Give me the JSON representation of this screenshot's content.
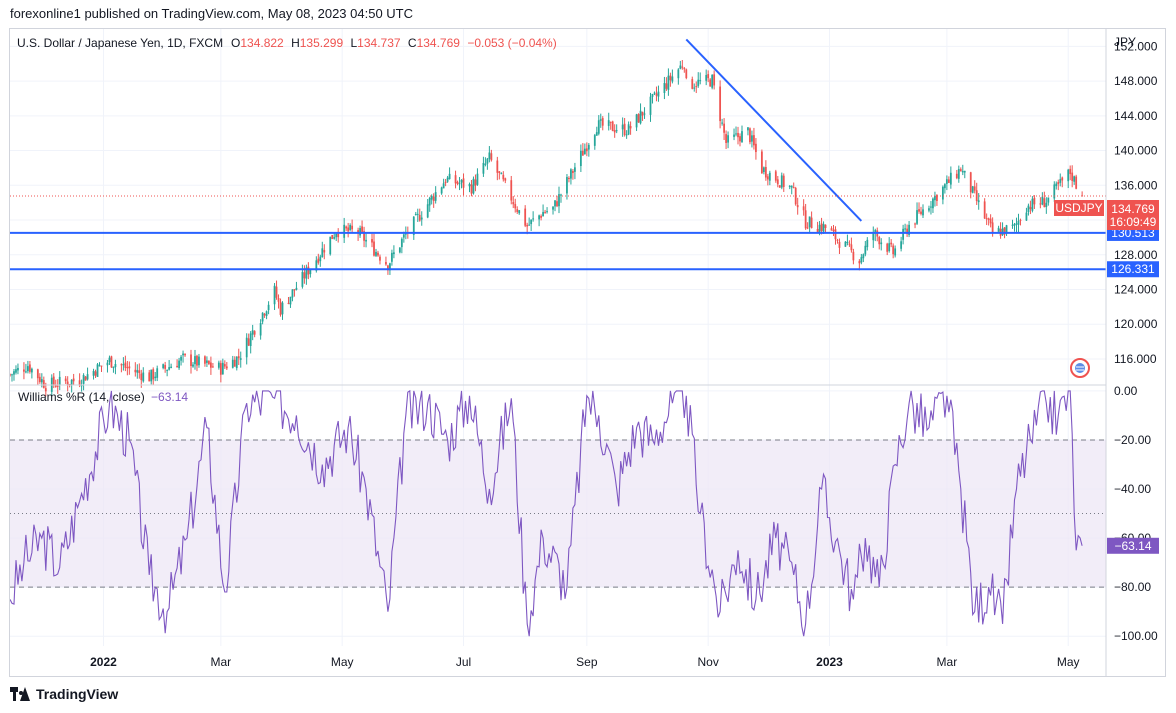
{
  "header": {
    "published": "forexonline1 published on TradingView.com, May 08, 2023 04:50 UTC"
  },
  "legend": {
    "symbol": "U.S. Dollar / Japanese Yen, 1D, FXCM",
    "o_label": "O",
    "o": "134.822",
    "h_label": "H",
    "h": "135.299",
    "l_label": "L",
    "l": "134.737",
    "c_label": "C",
    "c": "134.769",
    "change": "−0.053 (−0.04%)"
  },
  "currency": "JPY",
  "price_label": {
    "ticker": "USDJPY",
    "value": "134.769",
    "countdown": "16:09:49"
  },
  "levels": [
    {
      "label": "130.513",
      "value": 130.513
    },
    {
      "label": "126.331",
      "value": 126.331
    }
  ],
  "indicator": {
    "name": "Williams %R (14, close)",
    "value": "−63.14",
    "last_label": "−63.14"
  },
  "footer": {
    "brand": "TradingView"
  },
  "colors": {
    "up": "#26a69a",
    "down": "#ef5350",
    "level": "#2962ff",
    "wr": "#7e57c2",
    "wr_band": "#ede7f6",
    "grid": "#f0f3fa"
  },
  "chart_data": [
    {
      "type": "candlestick",
      "title": "U.S. Dollar / Japanese Yen, 1D, FXCM",
      "ylabel": "JPY",
      "ylim": [
        113,
        154
      ],
      "y_ticks": [
        116,
        120,
        124,
        128,
        132,
        136,
        140,
        144,
        148,
        152
      ],
      "y_tick_labels": [
        "116.000",
        "120.000",
        "124.000",
        "128.000",
        "132.000",
        "136.000",
        "140.000",
        "144.000",
        "148.000",
        "152.000"
      ],
      "x_tick_labels": [
        "2022",
        "Mar",
        "May",
        "Jul",
        "Sep",
        "Nov",
        "2023",
        "Mar",
        "May"
      ],
      "x_ticks": [
        "2022-01-01",
        "2022-03-01",
        "2022-05-01",
        "2022-07-01",
        "2022-09-01",
        "2022-11-01",
        "2023-01-01",
        "2023-03-01",
        "2023-05-01"
      ],
      "x_range": [
        "2021-11-15",
        "2023-05-20"
      ],
      "anchors": [
        [
          "2021-11-15",
          114.2
        ],
        [
          "2021-11-24",
          115.3
        ],
        [
          "2021-12-03",
          113.0
        ],
        [
          "2021-12-20",
          113.6
        ],
        [
          "2022-01-04",
          115.8
        ],
        [
          "2022-01-24",
          113.9
        ],
        [
          "2022-02-10",
          116.0
        ],
        [
          "2022-03-01",
          114.9
        ],
        [
          "2022-03-10",
          116.2
        ],
        [
          "2022-03-28",
          123.8
        ],
        [
          "2022-03-31",
          121.7
        ],
        [
          "2022-04-28",
          130.8
        ],
        [
          "2022-05-09",
          130.6
        ],
        [
          "2022-05-24",
          126.9
        ],
        [
          "2022-06-01",
          130.0
        ],
        [
          "2022-06-15",
          134.5
        ],
        [
          "2022-06-22",
          136.7
        ],
        [
          "2022-07-05",
          135.8
        ],
        [
          "2022-07-14",
          139.1
        ],
        [
          "2022-08-02",
          131.3
        ],
        [
          "2022-08-10",
          132.9
        ],
        [
          "2022-08-15",
          133.3
        ],
        [
          "2022-09-06",
          142.9
        ],
        [
          "2022-09-22",
          142.4
        ],
        [
          "2022-10-20",
          150.2
        ],
        [
          "2022-10-21",
          147.6
        ],
        [
          "2022-11-03",
          148.1
        ],
        [
          "2022-11-10",
          140.9
        ],
        [
          "2022-11-21",
          142.2
        ],
        [
          "2022-11-28",
          137.9
        ],
        [
          "2022-12-13",
          135.6
        ],
        [
          "2022-12-20",
          131.8
        ],
        [
          "2022-12-30",
          131.1
        ],
        [
          "2023-01-16",
          127.4
        ],
        [
          "2023-01-23",
          130.6
        ],
        [
          "2023-02-02",
          128.2
        ],
        [
          "2023-02-10",
          131.4
        ],
        [
          "2023-03-08",
          137.9
        ],
        [
          "2023-03-24",
          130.5
        ],
        [
          "2023-04-04",
          131.1
        ],
        [
          "2023-04-10",
          133.6
        ],
        [
          "2023-04-20",
          134.2
        ],
        [
          "2023-05-02",
          137.5
        ],
        [
          "2023-05-08",
          134.769
        ]
      ],
      "annotations": [
        {
          "type": "trendline",
          "from": [
            "2022-10-21",
            152.8
          ],
          "to": [
            "2023-01-17",
            131.9
          ]
        },
        {
          "type": "horizontal_line",
          "value": 130.513,
          "label": "130.513"
        },
        {
          "type": "horizontal_line",
          "value": 126.331,
          "label": "126.331"
        }
      ],
      "last_price": 134.769
    },
    {
      "type": "line",
      "title": "Williams %R (14, close)",
      "ylim": [
        -104,
        2
      ],
      "y_ticks": [
        0,
        -20,
        -40,
        -60,
        -80,
        -100
      ],
      "y_tick_labels": [
        "0.00",
        "−20.00",
        "−40.00",
        "−60.00",
        "−80.00",
        "−100.00"
      ],
      "band": [
        -20,
        -80
      ],
      "midline": -50,
      "x": [
        "2021-11-15",
        "2021-11-22",
        "2021-12-01",
        "2021-12-10",
        "2021-12-20",
        "2022-01-04",
        "2022-01-14",
        "2022-01-24",
        "2022-02-02",
        "2022-02-12",
        "2022-02-22",
        "2022-03-03",
        "2022-03-14",
        "2022-03-28",
        "2022-04-08",
        "2022-04-21",
        "2022-05-04",
        "2022-05-13",
        "2022-05-24",
        "2022-06-02",
        "2022-06-13",
        "2022-06-23",
        "2022-07-04",
        "2022-07-14",
        "2022-07-25",
        "2022-08-02",
        "2022-08-10",
        "2022-08-22",
        "2022-09-01",
        "2022-09-07",
        "2022-09-16",
        "2022-09-26",
        "2022-10-04",
        "2022-10-14",
        "2022-10-21",
        "2022-10-28",
        "2022-11-07",
        "2022-11-16",
        "2022-11-25",
        "2022-12-05",
        "2022-12-14",
        "2022-12-20",
        "2022-12-28",
        "2023-01-06",
        "2023-01-13",
        "2023-01-19",
        "2023-01-26",
        "2023-02-03",
        "2023-02-10",
        "2023-02-20",
        "2023-03-01",
        "2023-03-08",
        "2023-03-15",
        "2023-03-22",
        "2023-03-29",
        "2023-04-05",
        "2023-04-12",
        "2023-04-20",
        "2023-04-26",
        "2023-05-02",
        "2023-05-05",
        "2023-05-08"
      ],
      "values": [
        -85,
        -70,
        -60,
        -72,
        -45,
        -5,
        -20,
        -75,
        -90,
        -60,
        -15,
        -82,
        -5,
        -3,
        -10,
        -30,
        -15,
        -40,
        -90,
        -10,
        -5,
        -20,
        -2,
        -40,
        -3,
        -95,
        -60,
        -80,
        -2,
        -10,
        -40,
        -15,
        -20,
        -5,
        -2,
        -50,
        -90,
        -65,
        -85,
        -60,
        -75,
        -95,
        -40,
        -65,
        -85,
        -60,
        -80,
        -30,
        -5,
        -15,
        -2,
        -40,
        -90,
        -80,
        -95,
        -40,
        -20,
        -5,
        -10,
        0,
        -65,
        -63.14
      ],
      "last_value": -63.14
    }
  ]
}
